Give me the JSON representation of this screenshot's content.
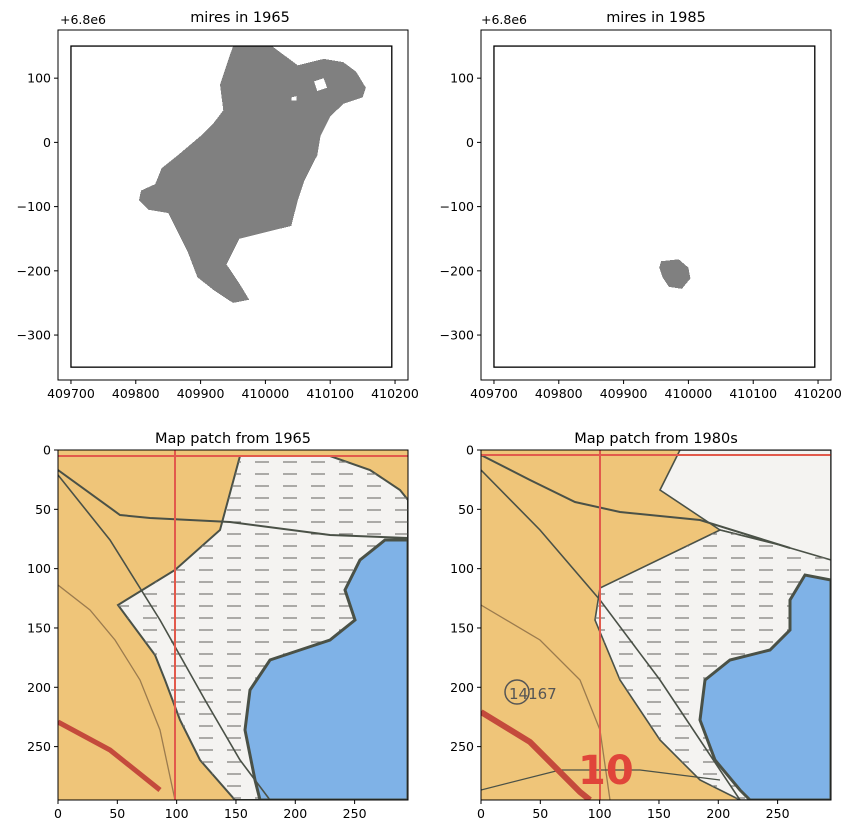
{
  "figure": {
    "background": "#ffffff"
  },
  "chart_data": [
    {
      "type": "area",
      "title": "mires in 1965",
      "offset_label": "+6.8e6",
      "xlabel": "",
      "ylabel": "",
      "x_ticks": [
        "409700",
        "409800",
        "409900",
        "410000",
        "410100",
        "410200"
      ],
      "y_ticks": [
        "100",
        "0",
        "−100",
        "−200",
        "−300"
      ],
      "xlim": [
        409680,
        410220
      ],
      "ylim": [
        -370,
        175
      ],
      "fill_color": "#808080",
      "boundary": {
        "x0": 409700,
        "x1": 410195,
        "y0": -350,
        "y1": 150
      },
      "mire_outline": [
        [
          409950,
          150
        ],
        [
          410010,
          150
        ],
        [
          410050,
          120
        ],
        [
          410090,
          130
        ],
        [
          410120,
          125
        ],
        [
          410140,
          110
        ],
        [
          410155,
          85
        ],
        [
          410150,
          70
        ],
        [
          410120,
          60
        ],
        [
          410100,
          40
        ],
        [
          410085,
          10
        ],
        [
          410080,
          -20
        ],
        [
          410060,
          -60
        ],
        [
          410050,
          -90
        ],
        [
          410040,
          -130
        ],
        [
          410000,
          -140
        ],
        [
          409960,
          -150
        ],
        [
          409940,
          -190
        ],
        [
          409960,
          -220
        ],
        [
          409975,
          -245
        ],
        [
          409950,
          -250
        ],
        [
          409920,
          -230
        ],
        [
          409895,
          -210
        ],
        [
          409880,
          -170
        ],
        [
          409860,
          -130
        ],
        [
          409850,
          -110
        ],
        [
          409820,
          -105
        ],
        [
          409805,
          -90
        ],
        [
          409808,
          -75
        ],
        [
          409830,
          -65
        ],
        [
          409840,
          -40
        ],
        [
          409865,
          -20
        ],
        [
          409900,
          10
        ],
        [
          409920,
          30
        ],
        [
          409935,
          50
        ],
        [
          409930,
          90
        ],
        [
          409940,
          120
        ]
      ],
      "holes": [
        [
          [
            410075,
            95
          ],
          [
            410090,
            100
          ],
          [
            410095,
            85
          ],
          [
            410080,
            80
          ]
        ],
        [
          [
            410040,
            70
          ],
          [
            410048,
            72
          ],
          [
            410048,
            65
          ],
          [
            410040,
            65
          ]
        ]
      ]
    },
    {
      "type": "area",
      "title": "mires in 1985",
      "offset_label": "+6.8e6",
      "xlabel": "",
      "ylabel": "",
      "x_ticks": [
        "409700",
        "409800",
        "409900",
        "410000",
        "410100",
        "410200"
      ],
      "y_ticks": [
        "100",
        "0",
        "−100",
        "−200",
        "−300"
      ],
      "xlim": [
        409680,
        410220
      ],
      "ylim": [
        -370,
        175
      ],
      "fill_color": "#808080",
      "boundary": {
        "x0": 409700,
        "x1": 410195,
        "y0": -350,
        "y1": 150
      },
      "mire_outline": [
        [
          409958,
          -185
        ],
        [
          409985,
          -182
        ],
        [
          410000,
          -195
        ],
        [
          410003,
          -212
        ],
        [
          409990,
          -228
        ],
        [
          409970,
          -225
        ],
        [
          409960,
          -210
        ],
        [
          409955,
          -195
        ]
      ],
      "holes": []
    },
    {
      "type": "image",
      "title": "Map patch from 1965",
      "x_ticks": [
        "0",
        "50",
        "100",
        "150",
        "200",
        "250"
      ],
      "y_ticks": [
        "0",
        "50",
        "100",
        "150",
        "200",
        "250"
      ],
      "xlim": [
        0,
        295
      ],
      "ylim": [
        295,
        0
      ],
      "map_colors": {
        "field": "#EFC579",
        "mire": "#F4F3F1",
        "water": "#7FB2E7",
        "grid_line": "#E25A4C",
        "border": "#4A5147"
      },
      "annotations": []
    },
    {
      "type": "image",
      "title": "Map patch from 1980s",
      "x_ticks": [
        "0",
        "50",
        "100",
        "150",
        "200",
        "250"
      ],
      "y_ticks": [
        "0",
        "50",
        "100",
        "150",
        "200",
        "250"
      ],
      "xlim": [
        0,
        295
      ],
      "ylim": [
        295,
        0
      ],
      "map_colors": {
        "field": "#EFC579",
        "mire": "#F4F3F1",
        "water": "#7FB2E7",
        "grid_line": "#E25A4C",
        "border": "#4A5147",
        "road": "#D44A3C"
      },
      "annotations": [
        "14167",
        "10"
      ]
    }
  ]
}
